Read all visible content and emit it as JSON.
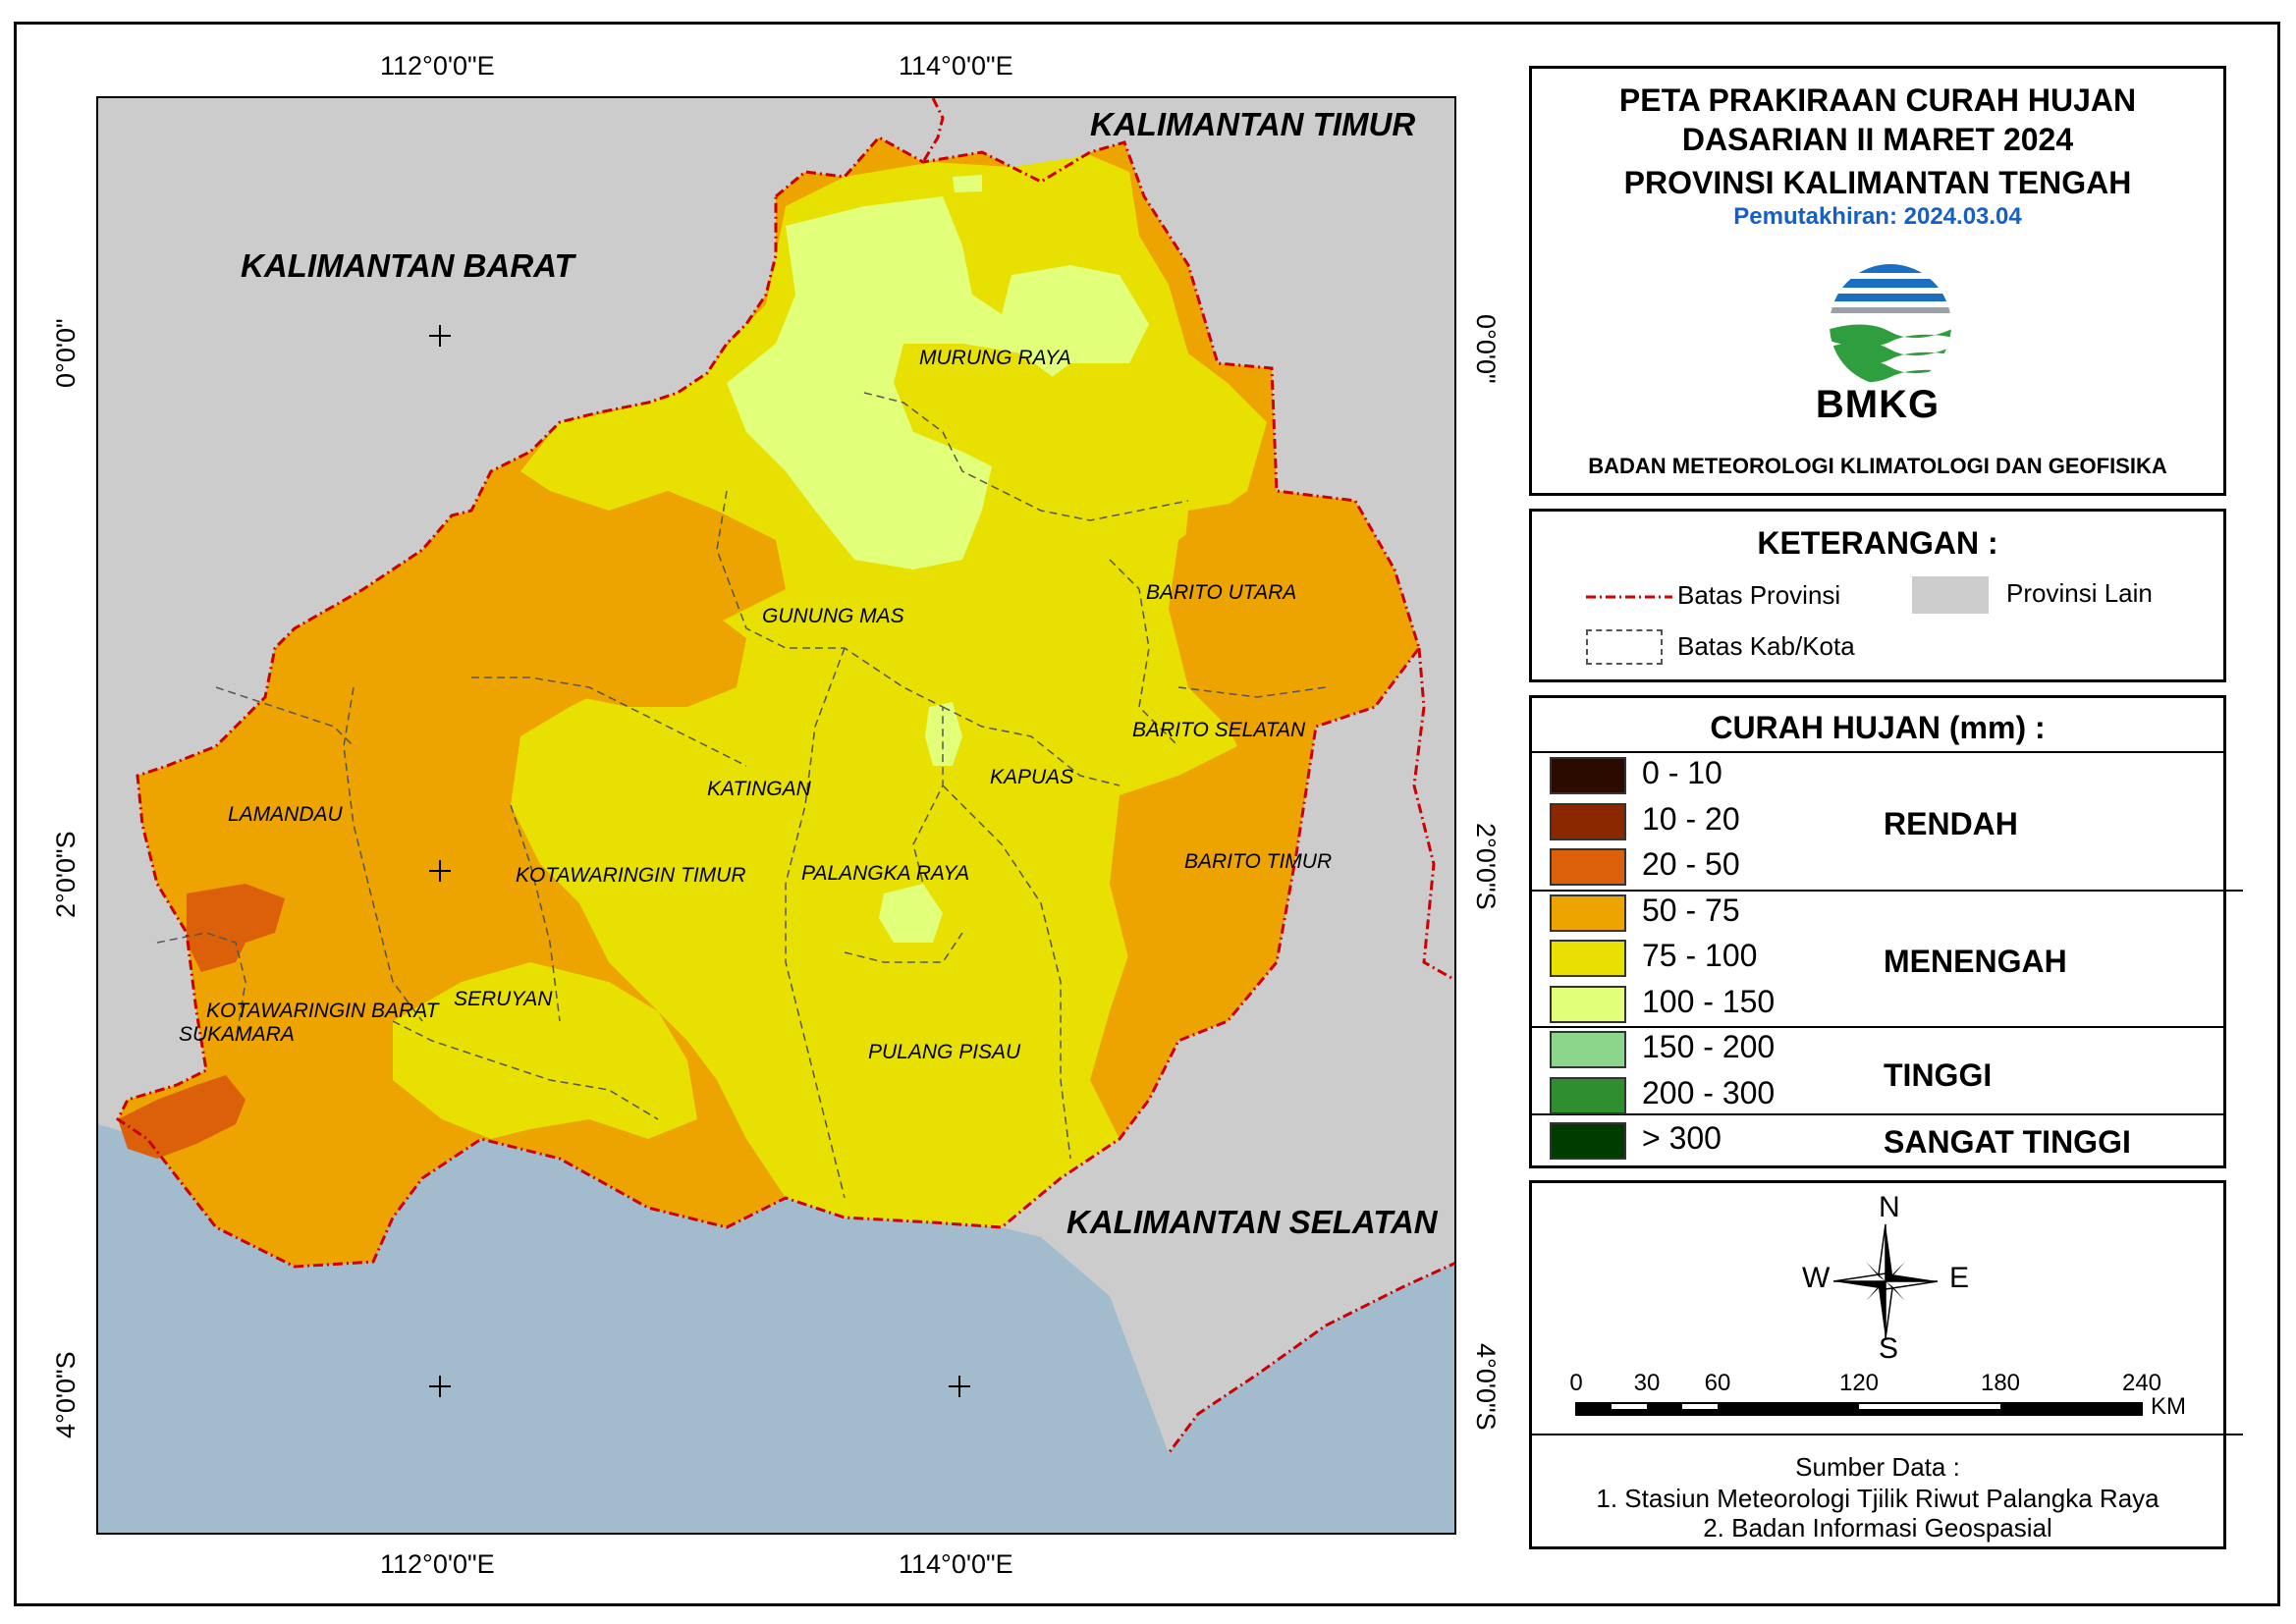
{
  "title": {
    "line1": "PETA PRAKIRAAN CURAH HUJAN",
    "line2": "DASARIAN II MARET 2024",
    "line3": "PROVINSI KALIMANTAN TENGAH",
    "update": "Pemutakhiran: 2024.03.04",
    "logo_text": "BMKG",
    "agency": "BADAN METEOROLOGI KLIMATOLOGI DAN GEOFISIKA"
  },
  "map": {
    "neighbors": {
      "timur": "KALIMANTAN TIMUR",
      "barat": "KALIMANTAN BARAT",
      "selatan": "KALIMANTAN SELATAN"
    },
    "regions": {
      "murung_raya": "MURUNG RAYA",
      "gunung_mas": "GUNUNG MAS",
      "barito_utara": "BARITO UTARA",
      "barito_selatan": "BARITO SELATAN",
      "kapuas": "KAPUAS",
      "katingan": "KATINGAN",
      "lamandau": "LAMANDAU",
      "kotawaringin_timur": "KOTAWARINGIN TIMUR",
      "palangka_raya": "PALANGKA RAYA",
      "barito_timur": "BARITO TIMUR",
      "seruyan": "SERUYAN",
      "kotawaringin_barat": "KOTAWARINGIN BARAT",
      "sukamara": "SUKAMARA",
      "pulang_pisau": "PULANG PISAU"
    },
    "coords": {
      "lon_112": "112°0'0\"E",
      "lon_114": "114°0'0\"E",
      "lat_0": "0°0'0\"",
      "lat_2": "2°0'0\"S",
      "lat_4": "4°0'0\"S"
    },
    "colors": {
      "other_province": "#cccccc",
      "sea": "#a3bccd",
      "province_border": "#cc0000"
    }
  },
  "keterangan": {
    "title": "KETERANGAN :",
    "batas_provinsi": "Batas Provinsi",
    "provinsi_lain": "Provinsi Lain",
    "batas_kab": "Batas Kab/Kota"
  },
  "curah_hujan": {
    "title": "CURAH HUJAN (mm) :",
    "classes": [
      {
        "label": "0 - 10",
        "color": "#2b0a00"
      },
      {
        "label": "10 - 20",
        "color": "#8c2800"
      },
      {
        "label": "20 - 50",
        "color": "#dc5f0a"
      },
      {
        "label": "50 - 75",
        "color": "#eda300"
      },
      {
        "label": "75 - 100",
        "color": "#e8e000"
      },
      {
        "label": "100 - 150",
        "color": "#e1ff78"
      },
      {
        "label": "150 - 200",
        "color": "#8cd68c"
      },
      {
        "label": "200 - 300",
        "color": "#2f8f2f"
      },
      {
        "label": "> 300",
        "color": "#003c00"
      }
    ],
    "categories": {
      "rendah": "RENDAH",
      "menengah": "MENENGAH",
      "tinggi": "TINGGI",
      "sangat_tinggi": "SANGAT TINGGI"
    }
  },
  "compass": {
    "n": "N",
    "s": "S",
    "w": "W",
    "e": "E"
  },
  "scale": {
    "ticks": [
      "0",
      "30",
      "60",
      "120",
      "180",
      "240"
    ],
    "unit": "KM"
  },
  "sumber": {
    "title": "Sumber Data :",
    "line1": "1. Stasiun Meteorologi Tjilik Riwut Palangka Raya",
    "line2": "2. Badan Informasi Geospasial"
  }
}
